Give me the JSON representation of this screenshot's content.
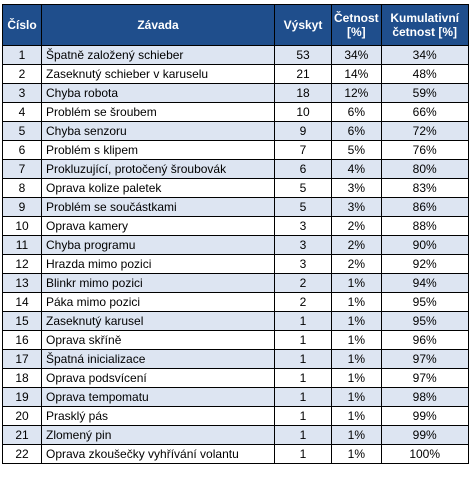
{
  "table": {
    "headers": {
      "number": "Číslo",
      "defect": "Závada",
      "occurrence": "Výskyt",
      "frequency_line1": "Četnost",
      "frequency_line2": "[%]",
      "cumulative_line1": "Kumulativní",
      "cumulative_line2": "četnost [%]"
    },
    "rows": [
      {
        "number": "1",
        "defect": "Špatně založený schieber",
        "occurrence": "53",
        "frequency": "34%",
        "cumulative": "34%"
      },
      {
        "number": "2",
        "defect": "Zaseknutý schieber v karuselu",
        "occurrence": "21",
        "frequency": "14%",
        "cumulative": "48%"
      },
      {
        "number": "3",
        "defect": "Chyba robota",
        "occurrence": "18",
        "frequency": "12%",
        "cumulative": "59%"
      },
      {
        "number": "4",
        "defect": "Problém se šroubem",
        "occurrence": "10",
        "frequency": "6%",
        "cumulative": "66%"
      },
      {
        "number": "5",
        "defect": "Chyba senzoru",
        "occurrence": "9",
        "frequency": "6%",
        "cumulative": "72%"
      },
      {
        "number": "6",
        "defect": "Problém s klipem",
        "occurrence": "7",
        "frequency": "5%",
        "cumulative": "76%"
      },
      {
        "number": "7",
        "defect": "Prokluzující, protočený šroubovák",
        "occurrence": "6",
        "frequency": "4%",
        "cumulative": "80%"
      },
      {
        "number": "8",
        "defect": "Oprava kolize paletek",
        "occurrence": "5",
        "frequency": "3%",
        "cumulative": "83%"
      },
      {
        "number": "9",
        "defect": "Problém se součástkami",
        "occurrence": "5",
        "frequency": "3%",
        "cumulative": "86%"
      },
      {
        "number": "10",
        "defect": "Oprava kamery",
        "occurrence": "3",
        "frequency": "2%",
        "cumulative": "88%"
      },
      {
        "number": "11",
        "defect": "Chyba programu",
        "occurrence": "3",
        "frequency": "2%",
        "cumulative": "90%"
      },
      {
        "number": "12",
        "defect": "Hrazda mimo pozici",
        "occurrence": "3",
        "frequency": "2%",
        "cumulative": "92%"
      },
      {
        "number": "13",
        "defect": "Blinkr mimo pozici",
        "occurrence": "2",
        "frequency": "1%",
        "cumulative": "94%"
      },
      {
        "number": "14",
        "defect": "Páka mimo pozici",
        "occurrence": "2",
        "frequency": "1%",
        "cumulative": "95%"
      },
      {
        "number": "15",
        "defect": "Zaseknutý karusel",
        "occurrence": "1",
        "frequency": "1%",
        "cumulative": "95%"
      },
      {
        "number": "16",
        "defect": "Oprava skříně",
        "occurrence": "1",
        "frequency": "1%",
        "cumulative": "96%"
      },
      {
        "number": "17",
        "defect": "Špatná inicializace",
        "occurrence": "1",
        "frequency": "1%",
        "cumulative": "97%"
      },
      {
        "number": "18",
        "defect": "Oprava podsvícení",
        "occurrence": "1",
        "frequency": "1%",
        "cumulative": "97%"
      },
      {
        "number": "19",
        "defect": "Oprava tempomatu",
        "occurrence": "1",
        "frequency": "1%",
        "cumulative": "98%"
      },
      {
        "number": "20",
        "defect": "Prasklý pás",
        "occurrence": "1",
        "frequency": "1%",
        "cumulative": "99%"
      },
      {
        "number": "21",
        "defect": "Zlomený pin",
        "occurrence": "1",
        "frequency": "1%",
        "cumulative": "99%"
      },
      {
        "number": "22",
        "defect": "Oprava zkoušečky vyhřívání volantu",
        "occurrence": "1",
        "frequency": "1%",
        "cumulative": "100%"
      }
    ]
  },
  "colors": {
    "header_background": "#1f4e8c",
    "header_text": "#ffffff",
    "band_background": "#dde5f2",
    "grid_lines": "#000000"
  }
}
